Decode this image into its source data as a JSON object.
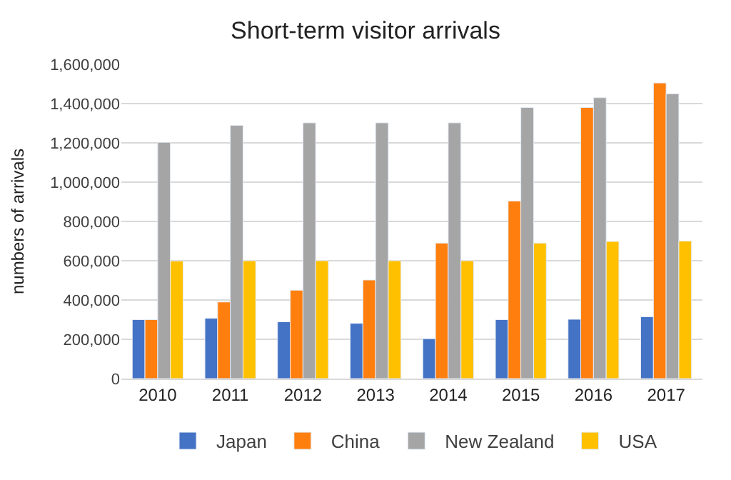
{
  "chart_data": {
    "type": "bar",
    "title": "Short-term visitor arrivals",
    "ylabel": "numbers of arrivals",
    "categories": [
      "2010",
      "2011",
      "2012",
      "2013",
      "2014",
      "2015",
      "2016",
      "2017"
    ],
    "series": [
      {
        "name": "Japan",
        "color": "#4472c4",
        "values": [
          300000,
          307000,
          289000,
          281000,
          203000,
          300000,
          302000,
          315000
        ]
      },
      {
        "name": "China",
        "color": "#ff7f0e",
        "values": [
          300000,
          390000,
          450000,
          502000,
          690000,
          904000,
          1380000,
          1505000
        ]
      },
      {
        "name": "New Zealand",
        "color": "#a5a5a5",
        "values": [
          1203000,
          1289000,
          1302000,
          1302000,
          1302000,
          1380000,
          1430000,
          1450000
        ]
      },
      {
        "name": "USA",
        "color": "#ffc000",
        "values": [
          599000,
          600000,
          600000,
          600000,
          600000,
          690000,
          698000,
          700000
        ]
      }
    ],
    "ylim": [
      0,
      1600000
    ],
    "yticks": [
      {
        "value": 0,
        "label": "0"
      },
      {
        "value": 200000,
        "label": "200,000"
      },
      {
        "value": 400000,
        "label": "400,000"
      },
      {
        "value": 600000,
        "label": "600,000"
      },
      {
        "value": 800000,
        "label": "800,000"
      },
      {
        "value": 1000000,
        "label": "1,000,000"
      },
      {
        "value": 1200000,
        "label": "1,200,000"
      },
      {
        "value": 1400000,
        "label": "1,400,000"
      },
      {
        "value": 1600000,
        "label": "1,600,000"
      }
    ],
    "grid": "y",
    "legend": "bottom"
  }
}
